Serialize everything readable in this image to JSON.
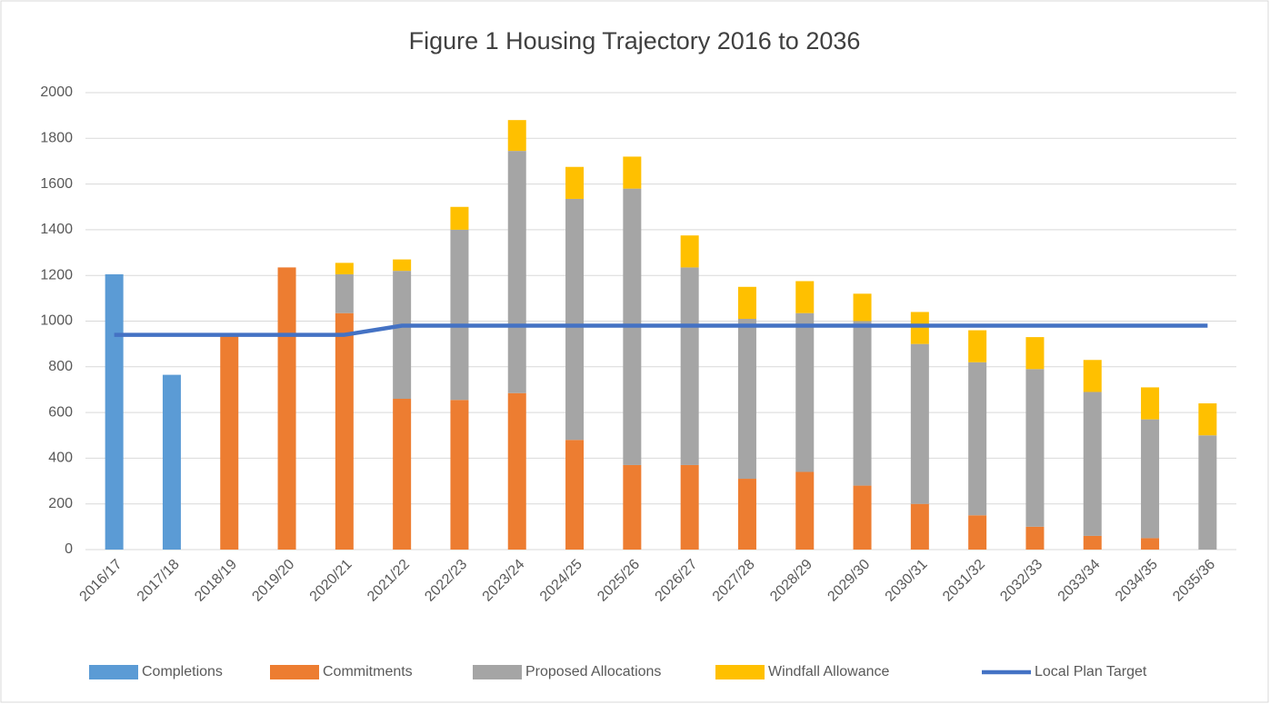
{
  "chart_data": {
    "type": "bar",
    "title": "Figure 1 Housing Trajectory 2016 to 2036",
    "categories": [
      "2016/17",
      "2017/18",
      "2018/19",
      "2019/20",
      "2020/21",
      "2021/22",
      "2022/23",
      "2023/24",
      "2024/25",
      "2025/26",
      "2026/27",
      "2027/28",
      "2028/29",
      "2029/30",
      "2030/31",
      "2031/32",
      "2032/33",
      "2033/34",
      "2034/35",
      "2035/36"
    ],
    "stacked": true,
    "series": [
      {
        "name": "Completions",
        "color": "#5b9bd5",
        "values": [
          1205,
          765,
          null,
          null,
          null,
          null,
          null,
          null,
          null,
          null,
          null,
          null,
          null,
          null,
          null,
          null,
          null,
          null,
          null,
          null
        ]
      },
      {
        "name": "Commitments",
        "color": "#ed7d31",
        "values": [
          null,
          null,
          935,
          1235,
          1035,
          660,
          655,
          685,
          480,
          370,
          370,
          310,
          340,
          280,
          200,
          150,
          100,
          60,
          50,
          null
        ]
      },
      {
        "name": "Proposed Allocations",
        "color": "#a5a5a5",
        "values": [
          null,
          null,
          null,
          null,
          170,
          560,
          745,
          1060,
          1055,
          1210,
          865,
          700,
          695,
          720,
          700,
          670,
          690,
          630,
          520,
          500
        ]
      },
      {
        "name": "Windfall Allowance",
        "color": "#ffc000",
        "values": [
          null,
          null,
          null,
          null,
          50,
          50,
          100,
          135,
          140,
          140,
          140,
          140,
          140,
          120,
          140,
          140,
          140,
          140,
          140,
          140
        ]
      },
      {
        "name": "Local Plan Target",
        "color": "#4472c4",
        "type": "line",
        "values": [
          940,
          940,
          940,
          940,
          940,
          980,
          980,
          980,
          980,
          980,
          980,
          980,
          980,
          980,
          980,
          980,
          980,
          980,
          980,
          980
        ]
      }
    ],
    "ylim": [
      0,
      2000
    ],
    "yticks": [
      0,
      200,
      400,
      600,
      800,
      1000,
      1200,
      1400,
      1600,
      1800,
      2000
    ],
    "grid": true,
    "legend": "bottom"
  }
}
